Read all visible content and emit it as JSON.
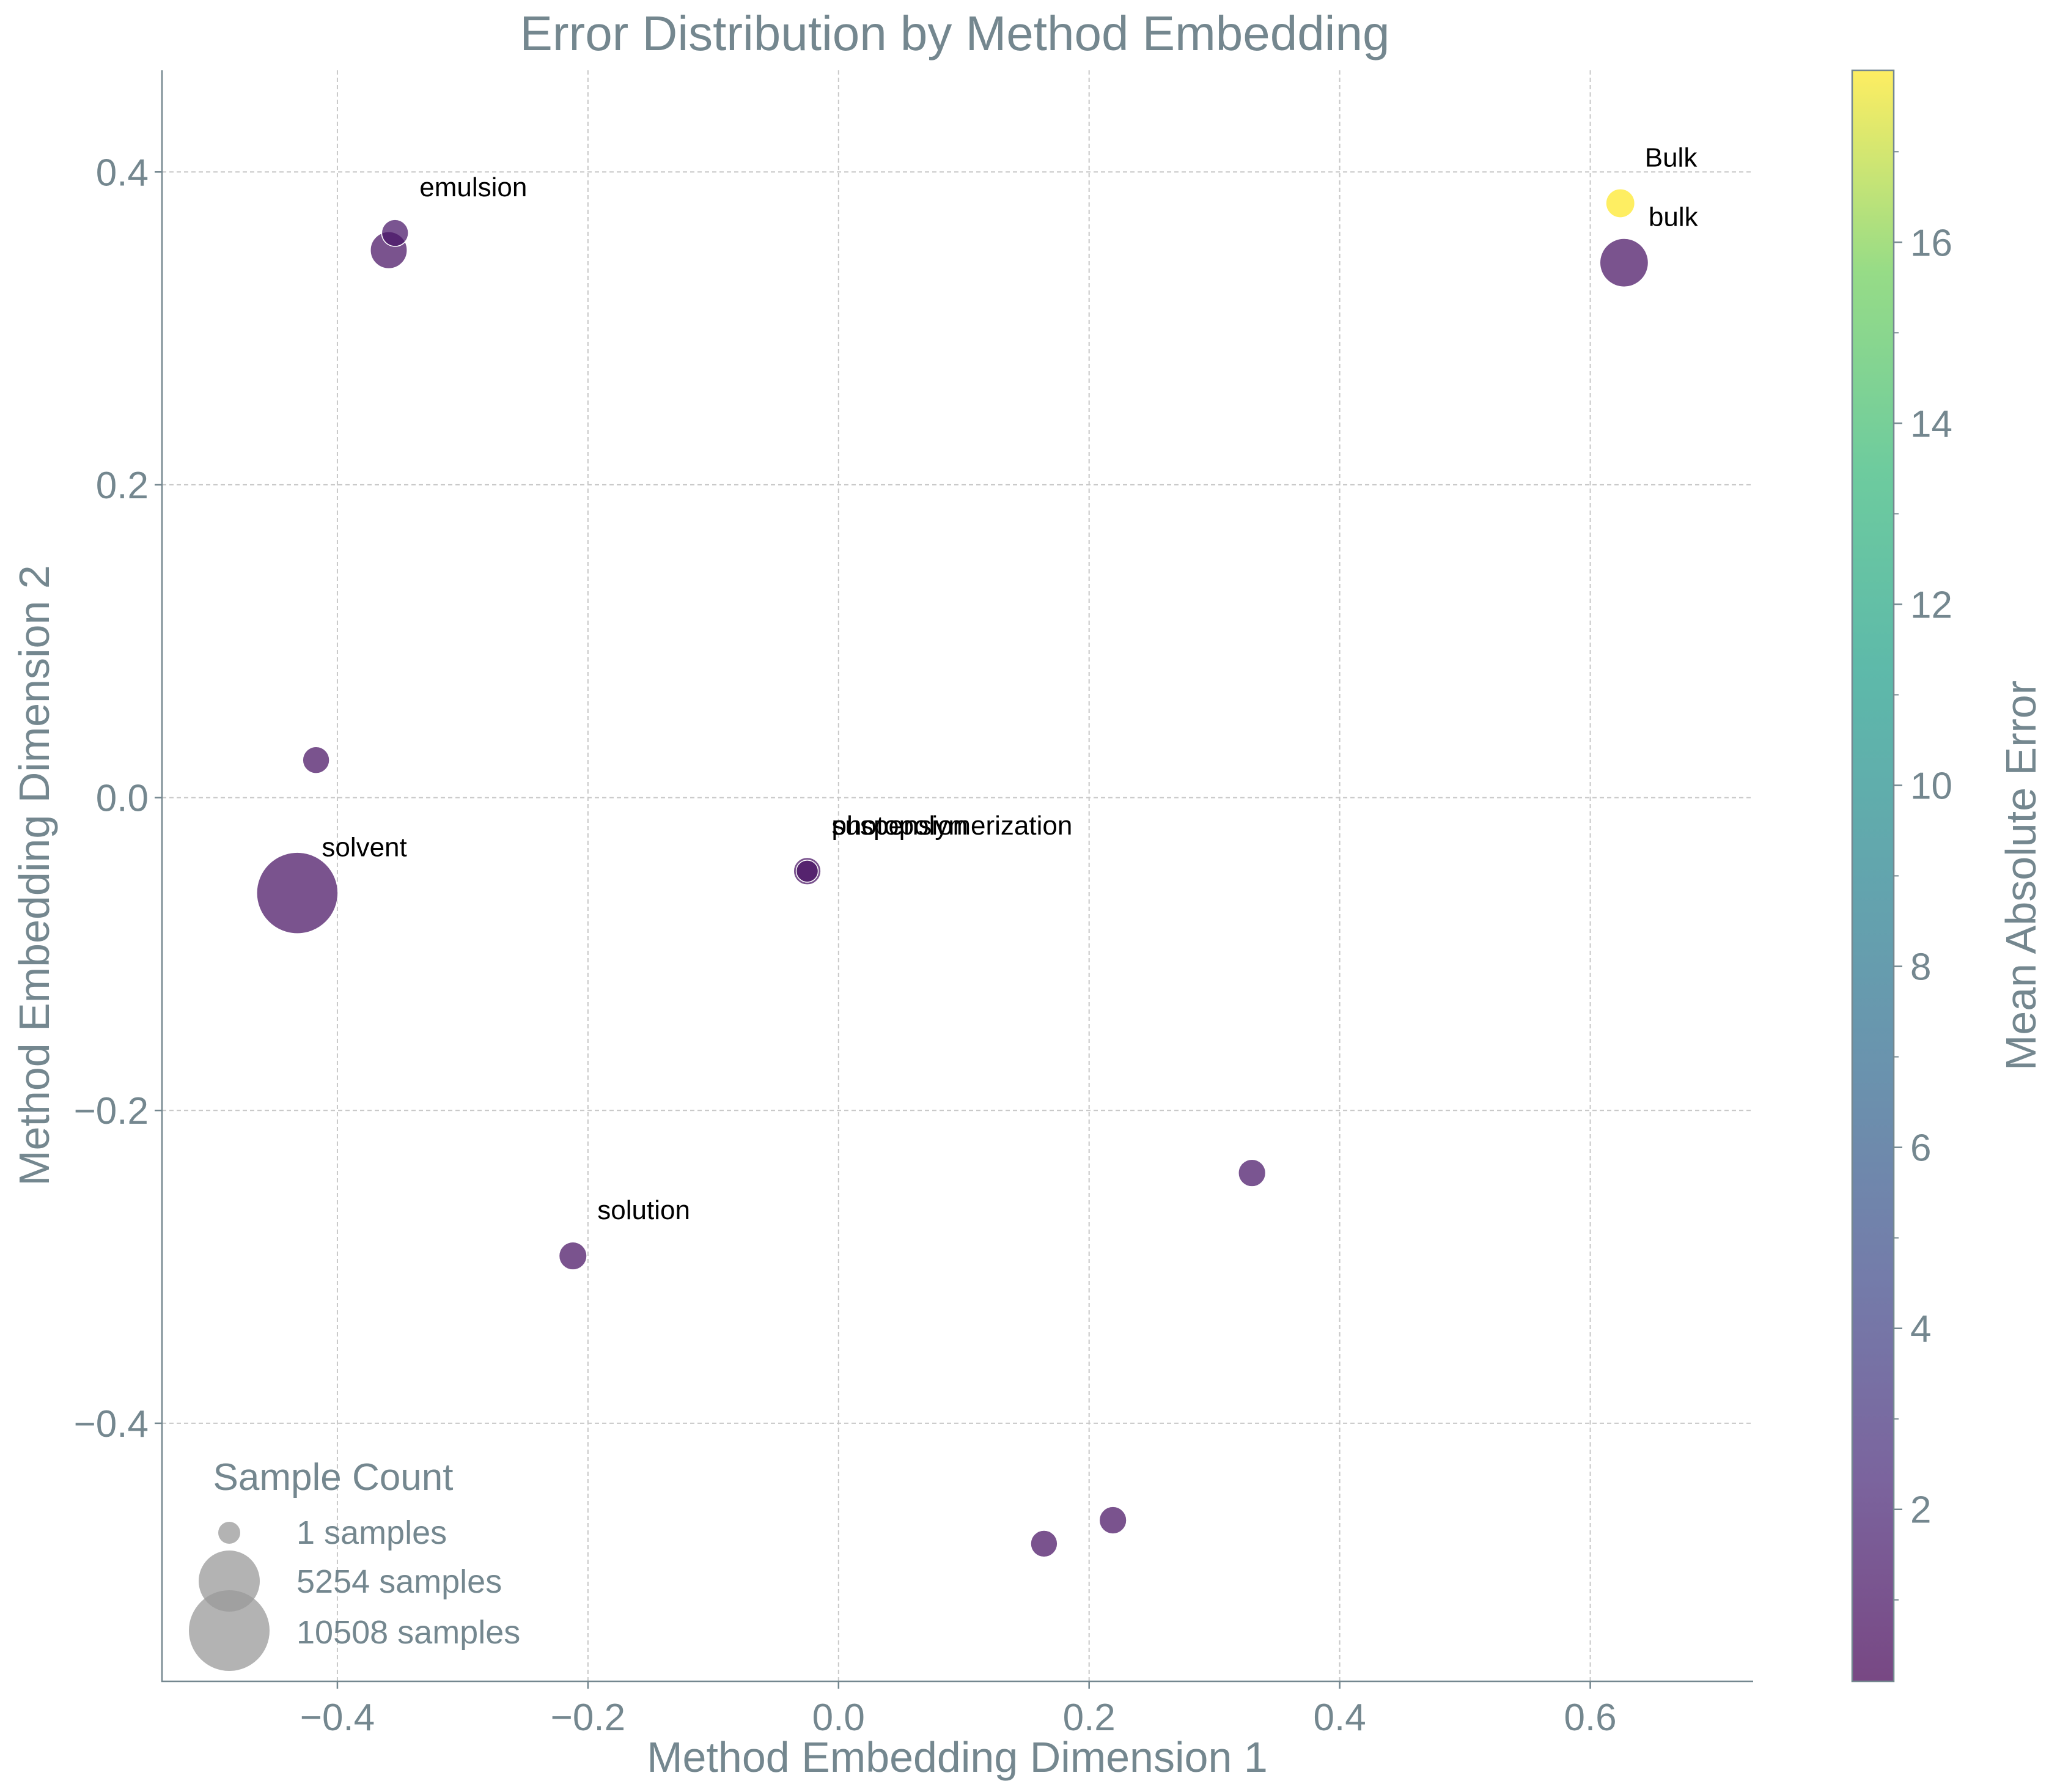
{
  "chart_data": {
    "type": "scatter",
    "title": "Error Distribution by Method Embedding",
    "xlabel": "Method Embedding Dimension 1",
    "ylabel": "Method Embedding Dimension 2",
    "xlim": [
      -0.54,
      0.73
    ],
    "ylim": [
      -0.565,
      0.465
    ],
    "xticks": [
      -0.4,
      -0.2,
      0.0,
      0.2,
      0.4,
      0.6
    ],
    "yticks": [
      -0.4,
      -0.2,
      0.0,
      0.2,
      0.4
    ],
    "xtick_labels": [
      "−0.4",
      "−0.2",
      "0.0",
      "0.2",
      "0.4",
      "0.6"
    ],
    "ytick_labels": [
      "−0.4",
      "−0.2",
      "0.0",
      "0.2",
      "0.4"
    ],
    "grid": true,
    "colormap": "viridis",
    "colorbar": {
      "label": "Mean Absolute Error",
      "range": [
        0.1,
        17.9
      ],
      "ticks": [
        2,
        4,
        6,
        8,
        10,
        12,
        14,
        16
      ],
      "tick_labels": [
        "2",
        "4",
        "6",
        "8",
        "10",
        "12",
        "14",
        "16"
      ]
    },
    "size_legend": {
      "title": "Sample Count",
      "location": "lower-left",
      "entries": [
        {
          "label": "1 samples",
          "count": 1
        },
        {
          "label": "5254 samples",
          "count": 5254
        },
        {
          "label": "10508 samples",
          "count": 10508
        }
      ]
    },
    "points": [
      {
        "x": -0.432,
        "y": -0.061,
        "count": 10508,
        "mae": 1.0,
        "label": "solvent"
      },
      {
        "x": -0.359,
        "y": 0.35,
        "count": 1500,
        "mae": 1.0,
        "label": ""
      },
      {
        "x": -0.354,
        "y": 0.361,
        "count": 400,
        "mae": 1.2,
        "label": "emulsion"
      },
      {
        "x": -0.417,
        "y": 0.024,
        "count": 400,
        "mae": 1.0,
        "label": ""
      },
      {
        "x": -0.212,
        "y": -0.293,
        "count": 500,
        "mae": 1.0,
        "label": "solution"
      },
      {
        "x": -0.025,
        "y": -0.047,
        "count": 450,
        "mae": 1.0,
        "label": "suspension"
      },
      {
        "x": -0.025,
        "y": -0.047,
        "count": 1,
        "mae": 1.0,
        "label": "photopolymerization"
      },
      {
        "x": 0.33,
        "y": -0.24,
        "count": 450,
        "mae": 1.2,
        "label": ""
      },
      {
        "x": 0.219,
        "y": -0.462,
        "count": 450,
        "mae": 1.0,
        "label": ""
      },
      {
        "x": 0.164,
        "y": -0.477,
        "count": 400,
        "mae": 1.0,
        "label": ""
      },
      {
        "x": 0.624,
        "y": 0.38,
        "count": 600,
        "mae": 17.9,
        "label": "Bulk"
      },
      {
        "x": 0.627,
        "y": 0.342,
        "count": 3200,
        "mae": 1.0,
        "label": "bulk"
      }
    ]
  }
}
